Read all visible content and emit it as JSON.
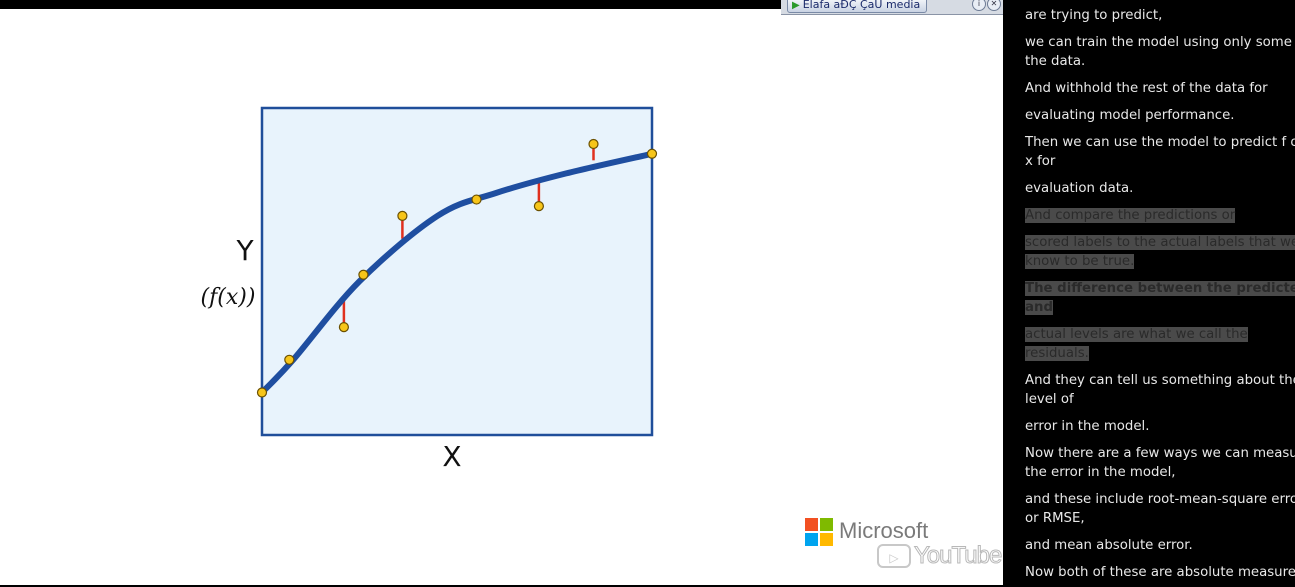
{
  "toolbar": {
    "button_label": "Elafa aĐÇ ÇaU media"
  },
  "chart_data": {
    "type": "scatter",
    "title": "",
    "xlabel": "X",
    "ylabel_main": "Y",
    "ylabel_sub": "(f(x))",
    "grid": false,
    "legend": "none",
    "colors": {
      "background": "#e8f3fc",
      "border": "#1f4e9a",
      "curve": "#1f4ea0",
      "residual": "#e0301e",
      "point_fill": "#f7c519",
      "point_stroke": "#6b5000"
    },
    "curve": {
      "name": "",
      "points": [
        [
          0.0,
          0.13
        ],
        [
          0.08,
          0.23
        ],
        [
          0.25,
          0.47
        ],
        [
          0.45,
          0.67
        ],
        [
          0.6,
          0.74
        ],
        [
          0.78,
          0.8
        ],
        [
          1.0,
          0.86
        ]
      ]
    },
    "observations": [
      {
        "x": 0.0,
        "y": 0.13,
        "predicted": 0.13
      },
      {
        "x": 0.07,
        "y": 0.23,
        "predicted": 0.23
      },
      {
        "x": 0.21,
        "y": 0.33,
        "predicted": 0.41
      },
      {
        "x": 0.26,
        "y": 0.49,
        "predicted": 0.49
      },
      {
        "x": 0.36,
        "y": 0.67,
        "predicted": 0.6
      },
      {
        "x": 0.55,
        "y": 0.72,
        "predicted": 0.72
      },
      {
        "x": 0.71,
        "y": 0.7,
        "predicted": 0.78
      },
      {
        "x": 0.85,
        "y": 0.89,
        "predicted": 0.84
      },
      {
        "x": 1.0,
        "y": 0.86,
        "predicted": 0.86
      }
    ]
  },
  "branding": {
    "microsoft": "Microsoft",
    "youtube": "YouTube",
    "ms_colors": [
      "#f25022",
      "#7fba00",
      "#00a4ef",
      "#ffb900"
    ]
  },
  "transcript": {
    "lines": [
      {
        "text": "are trying to predict,",
        "highlight": false,
        "bold": false
      },
      {
        "text": "we can train the model using only some of",
        "highlight": false,
        "bold": false
      },
      {
        "text": "the data.",
        "highlight": false,
        "bold": false
      },
      {
        "text": "And withhold the rest of the data for",
        "highlight": false,
        "bold": false
      },
      {
        "text": "evaluating model performance.",
        "highlight": false,
        "bold": false
      },
      {
        "text": "Then we can use the model to predict f of",
        "highlight": false,
        "bold": false
      },
      {
        "text": "x for",
        "highlight": false,
        "bold": false
      },
      {
        "text": "evaluation data.",
        "highlight": false,
        "bold": false
      },
      {
        "text": "And compare the predictions or",
        "highlight": true,
        "bold": false
      },
      {
        "text": "scored labels to the actual labels that we",
        "highlight": true,
        "bold": false
      },
      {
        "text": "know to be true.",
        "highlight": true,
        "bold": false
      },
      {
        "text": "The difference between the predicted",
        "highlight": true,
        "bold": true
      },
      {
        "text": "and",
        "highlight": true,
        "bold": true
      },
      {
        "text": "actual levels are what we call the",
        "highlight": true,
        "bold": false
      },
      {
        "text": "residuals.",
        "highlight": true,
        "bold": false
      },
      {
        "text": "And they can tell us something about the",
        "highlight": false,
        "bold": false
      },
      {
        "text": "level of",
        "highlight": false,
        "bold": false
      },
      {
        "text": "error in the model.",
        "highlight": false,
        "bold": false
      },
      {
        "text": "Now there are a few ways we can measure",
        "highlight": false,
        "bold": false
      },
      {
        "text": "the error in the model,",
        "highlight": false,
        "bold": false
      },
      {
        "text": "and these include root-mean-square error",
        "highlight": false,
        "bold": false
      },
      {
        "text": "or RMSE,",
        "highlight": false,
        "bold": false
      },
      {
        "text": "and mean absolute error.",
        "highlight": false,
        "bold": false
      },
      {
        "text": "Now both of these are absolute measures",
        "highlight": false,
        "bold": false
      }
    ]
  }
}
